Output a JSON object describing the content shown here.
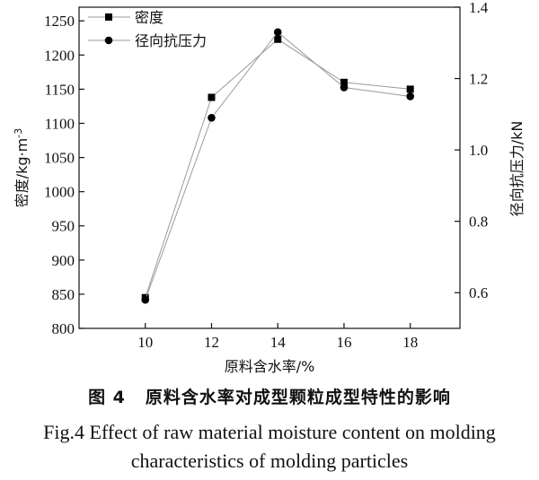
{
  "chart_data": {
    "type": "line",
    "xlabel": "原料含水率/%",
    "x": [
      10,
      12,
      14,
      16,
      18
    ],
    "xlim": [
      8,
      19.5
    ],
    "y_left": {
      "label_main": "密度/kg·m",
      "label_sup": "-3",
      "lim": [
        800,
        1270
      ],
      "ticks": [
        800,
        850,
        900,
        950,
        1000,
        1050,
        1100,
        1150,
        1200,
        1250
      ]
    },
    "y_right": {
      "label": "径向抗压力/kN",
      "lim": [
        0.5,
        1.4
      ],
      "ticks": [
        "0.6",
        "0.8",
        "1.0",
        "1.2",
        "1.4"
      ]
    },
    "series": [
      {
        "name": "密度",
        "axis": "left",
        "marker": "square",
        "values": [
          845,
          1138,
          1223,
          1160,
          1150
        ]
      },
      {
        "name": "径向抗压力",
        "axis": "right",
        "marker": "circle",
        "values": [
          0.58,
          1.09,
          1.33,
          1.175,
          1.15
        ]
      }
    ],
    "legend_position": "top-left",
    "grid": false,
    "line_color": "#9a9a9a",
    "marker_color": "#000000"
  },
  "caption": {
    "cn_number": "图 4",
    "cn_title": "原料含水率对成型颗粒成型特性的影响",
    "en_line1": "Fig.4 Effect of raw material moisture content on molding",
    "en_line2": "characteristics of molding particles"
  }
}
